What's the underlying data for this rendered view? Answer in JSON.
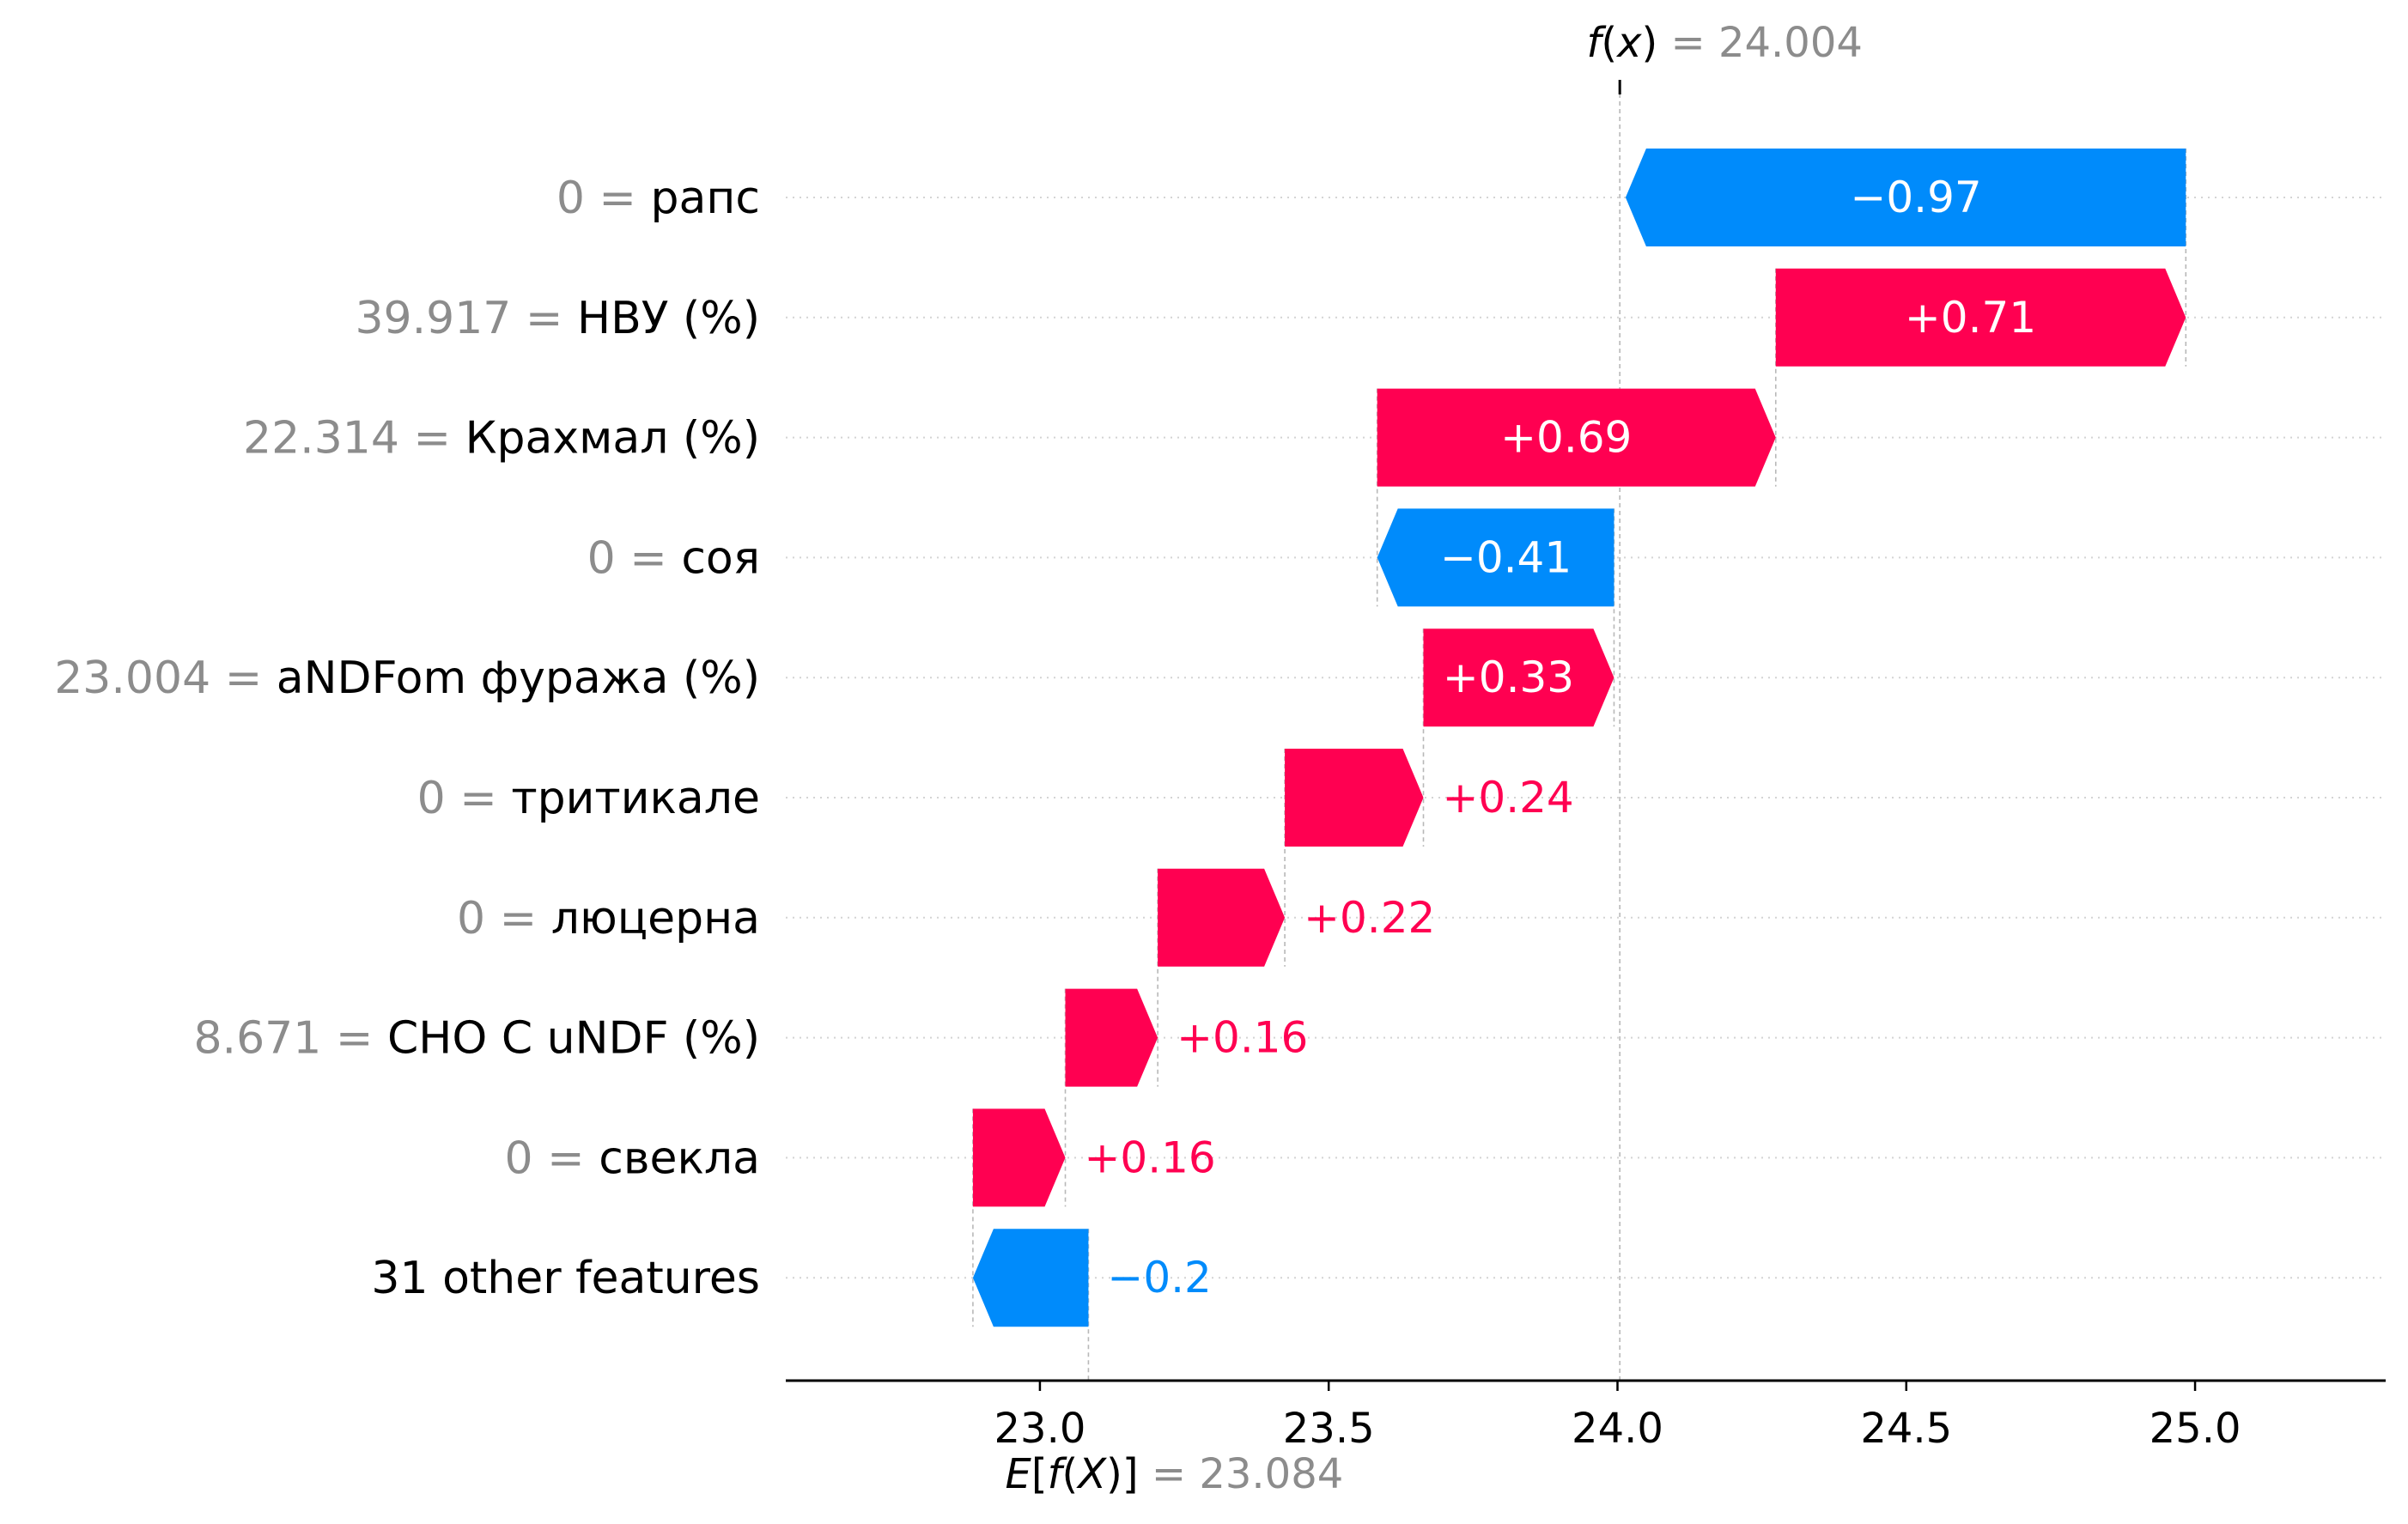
{
  "chart_data": {
    "type": "waterfall",
    "base_value": 23.084,
    "base_label_text": "= 23.084",
    "output_value": 24.004,
    "output_label_text": "= 24.004",
    "xlim": [
      22.56,
      25.33
    ],
    "xticks": [
      {
        "value": 23.0,
        "label": "23.0"
      },
      {
        "value": 23.5,
        "label": "23.5"
      },
      {
        "value": 24.0,
        "label": "24.0"
      },
      {
        "value": 24.5,
        "label": "24.5"
      },
      {
        "value": 25.0,
        "label": "25.0"
      }
    ],
    "features": [
      {
        "value_text": "0",
        "name": "рапс",
        "contribution": -0.97,
        "label": "−0.97"
      },
      {
        "value_text": "39.917",
        "name": "НВУ (%)",
        "contribution": 0.71,
        "label": "+0.71"
      },
      {
        "value_text": "22.314",
        "name": "Крахмал (%)",
        "contribution": 0.69,
        "label": "+0.69"
      },
      {
        "value_text": "0",
        "name": "соя",
        "contribution": -0.41,
        "label": "−0.41"
      },
      {
        "value_text": "23.004",
        "name": "aNDFom фуража (%)",
        "contribution": 0.33,
        "label": "+0.33"
      },
      {
        "value_text": "0",
        "name": "тритикале",
        "contribution": 0.24,
        "label": "+0.24"
      },
      {
        "value_text": "0",
        "name": "люцерна",
        "contribution": 0.22,
        "label": "+0.22"
      },
      {
        "value_text": "8.671",
        "name": "CHO C uNDF (%)",
        "contribution": 0.16,
        "label": "+0.16"
      },
      {
        "value_text": "0",
        "name": "свекла",
        "contribution": 0.16,
        "label": "+0.16"
      },
      {
        "value_text": "",
        "name": "31 other features",
        "contribution": -0.2,
        "label": "−0.2"
      }
    ],
    "colors": {
      "positive": "#ff0051",
      "negative": "#008bfb",
      "value_text": "#8c8c8c",
      "text": "#000000",
      "guide": "#b8b8b8"
    }
  }
}
